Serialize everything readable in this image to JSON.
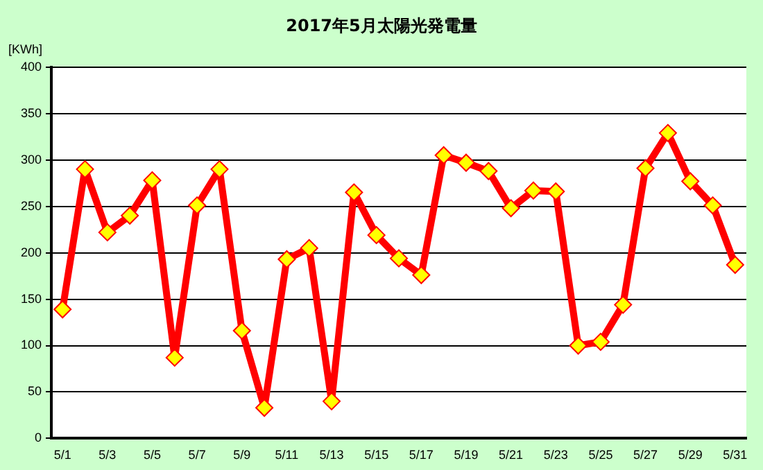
{
  "chart_data": {
    "type": "line",
    "title": "2017年5月太陽光発電量",
    "ylabel": "[KWh]",
    "categories": [
      "5/1",
      null,
      "5/3",
      null,
      "5/5",
      null,
      "5/7",
      null,
      "5/9",
      null,
      "5/11",
      null,
      "5/13",
      null,
      "5/15",
      null,
      "5/17",
      null,
      "5/19",
      null,
      "5/21",
      null,
      "5/23",
      null,
      "5/25",
      null,
      "5/27",
      null,
      "5/29",
      null,
      "5/31"
    ],
    "series": [
      {
        "color": "#ff0000",
        "values": [
          139,
          290,
          222,
          240,
          278,
          87,
          251,
          290,
          116,
          33,
          193,
          205,
          40,
          265,
          219,
          194,
          176,
          305,
          297,
          288,
          248,
          267,
          266,
          100,
          104,
          144,
          291,
          329,
          277,
          251,
          187
        ]
      }
    ],
    "ylim": [
      0,
      400
    ],
    "yticks": [
      0,
      50,
      100,
      150,
      200,
      250,
      300,
      350,
      400
    ],
    "grid": "y",
    "legend": false,
    "marker": "diamond",
    "line_style": "solid"
  }
}
